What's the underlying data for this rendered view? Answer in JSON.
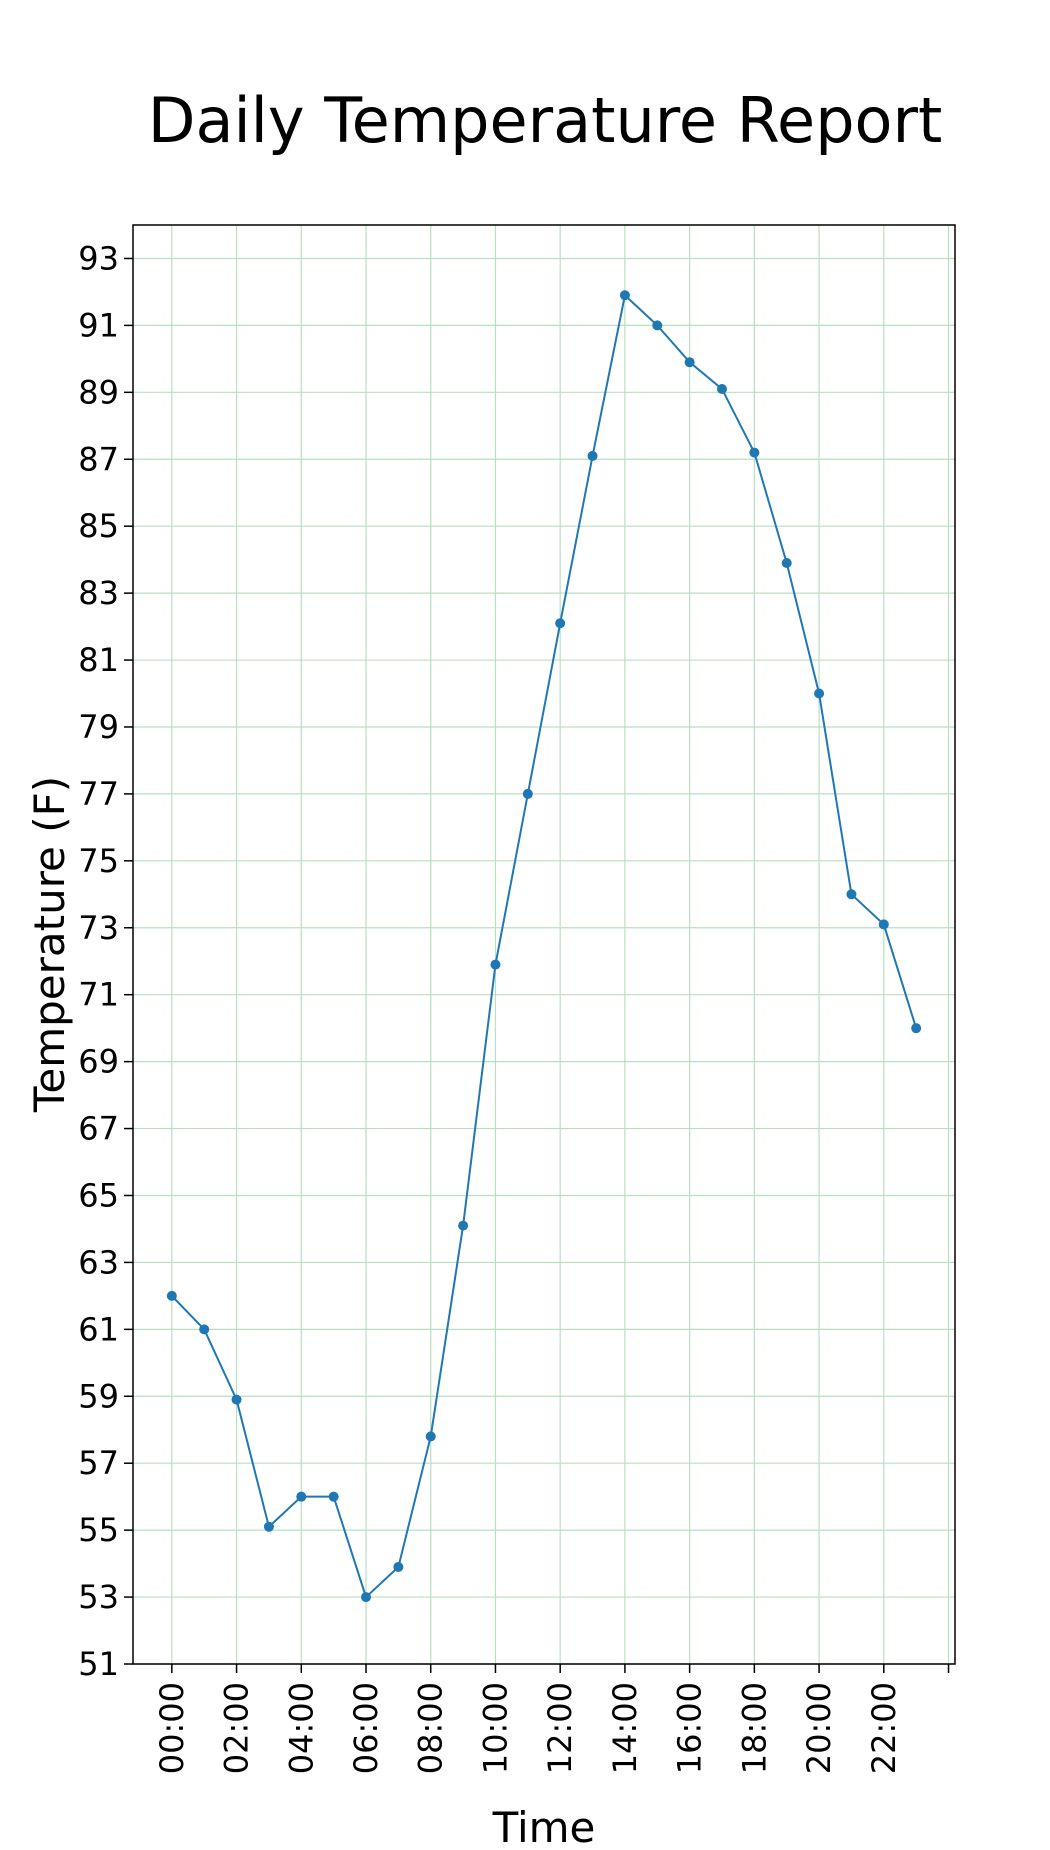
{
  "chart_data": {
    "type": "line",
    "title": "Daily Temperature Report",
    "xlabel": "Time",
    "ylabel": "Temperature (F)",
    "grid": true,
    "legend": "none",
    "xlim": [
      -1.2,
      24.2
    ],
    "ylim": [
      51,
      94
    ],
    "x_ticks": [
      0,
      2,
      4,
      6,
      8,
      10,
      12,
      14,
      16,
      18,
      20,
      22
    ],
    "x_tick_labels": [
      "00:00",
      "02:00",
      "04:00",
      "06:00",
      "08:00",
      "10:00",
      "12:00",
      "14:00",
      "16:00",
      "18:00",
      "20:00",
      "22:00"
    ],
    "y_ticks": [
      51,
      53,
      55,
      57,
      59,
      61,
      63,
      65,
      67,
      69,
      71,
      73,
      75,
      77,
      79,
      81,
      83,
      85,
      87,
      89,
      91,
      93
    ],
    "x": [
      0,
      1,
      2,
      3,
      4,
      5,
      6,
      7,
      8,
      9,
      10,
      11,
      12,
      13,
      14,
      15,
      16,
      17,
      18,
      19,
      20,
      21,
      22,
      23
    ],
    "series": [
      {
        "values": [
          62.0,
          61.0,
          58.9,
          55.1,
          56.0,
          56.0,
          53.0,
          53.9,
          57.8,
          64.1,
          71.9,
          77.0,
          82.1,
          87.1,
          91.9,
          91.0,
          89.9,
          89.1,
          87.2,
          83.9,
          80.0,
          74.0,
          73.1,
          70.0
        ],
        "color": "#1f77b4"
      }
    ],
    "grid_color": "#b9dfc3"
  }
}
